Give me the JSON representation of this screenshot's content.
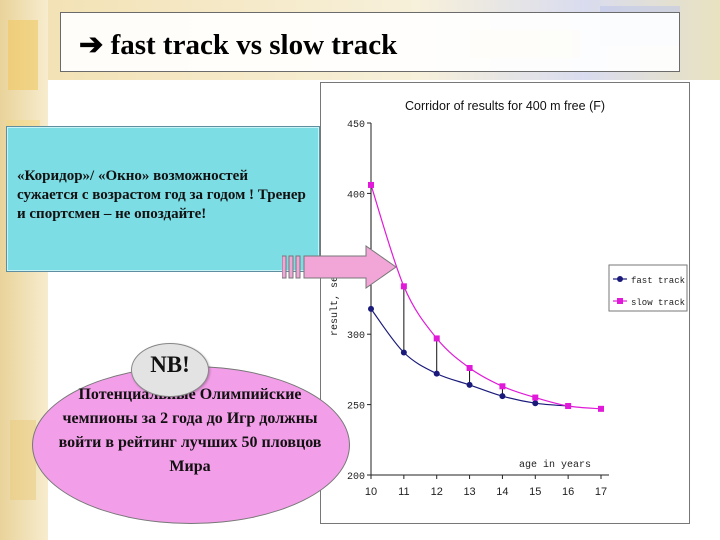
{
  "slide": {
    "title": "fast track  vs slow track",
    "title_arrow": "➔"
  },
  "note": {
    "text": "«Коридор»/ «Окно» возможностей сужается с возрастом год за годом ! Тренер и спортсмен – не опоздайте!"
  },
  "nb": {
    "label": "NB!",
    "text": "Потенциальные Олимпийские чемпионы за 2 года до Игр должны войти в рейтинг лучших 50 пловцов Мира"
  },
  "chart_data": {
    "type": "line",
    "title": "Corridor of results for 400 m free (F)",
    "xlabel": "age in years",
    "ylabel": "result, sec",
    "x": [
      10,
      11,
      12,
      13,
      14,
      15,
      16,
      17
    ],
    "y_ticks": [
      "450",
      "400",
      "350",
      "300",
      "250",
      "200"
    ],
    "y_tick_values": [
      450,
      400,
      350,
      300,
      250,
      200
    ],
    "ylim": [
      200,
      450
    ],
    "grid": false,
    "legend_position": "right",
    "series": [
      {
        "name": "fast track",
        "color": "#1a1a7a",
        "x": [
          10,
          11,
          12,
          13,
          14,
          15,
          16
        ],
        "values": [
          318,
          287,
          272,
          264,
          256,
          251,
          249
        ]
      },
      {
        "name": "slow track",
        "color": "#e01ad8",
        "x": [
          10,
          11,
          12,
          13,
          14,
          15,
          16,
          17
        ],
        "values": [
          406,
          334,
          297,
          276,
          263,
          255,
          249,
          247
        ]
      }
    ]
  },
  "colors": {
    "note_bg": "#7ddde5",
    "nb_bg": "#f29ee8",
    "arrow_fill": "#f2a6d8"
  }
}
